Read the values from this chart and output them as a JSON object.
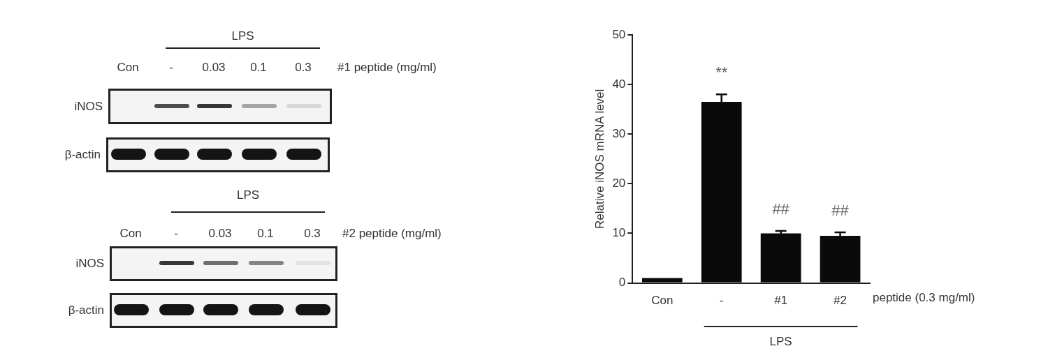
{
  "chart_data": [
    {
      "type": "other",
      "annotations": [
        "LPS",
        "Con",
        "-",
        "0.03",
        "0.1",
        "0.3",
        "#1 peptide (mg/ml)",
        "iNOS",
        "β-actin",
        "LPS",
        "Con",
        "-",
        "0.03",
        "0.1",
        "0.3",
        "#2 peptide (mg/ml)",
        "iNOS",
        "β-actin"
      ]
    },
    {
      "type": "bar",
      "ylabel": "Relative iNOS mRNA level",
      "xlabel": "peptide (0.3 mg/ml)",
      "categories": [
        "Con",
        "-",
        "#1",
        "#2"
      ],
      "values": [
        1.0,
        36.5,
        10.0,
        9.5
      ],
      "errors": [
        null,
        1.5,
        0.5,
        0.7
      ],
      "color": "#0a0a0a",
      "ylim": [
        0,
        50
      ],
      "yticks": [
        0,
        10,
        20,
        30,
        40,
        50
      ],
      "grid": false,
      "annotations": [
        "**",
        "##",
        "##",
        "LPS"
      ]
    }
  ]
}
